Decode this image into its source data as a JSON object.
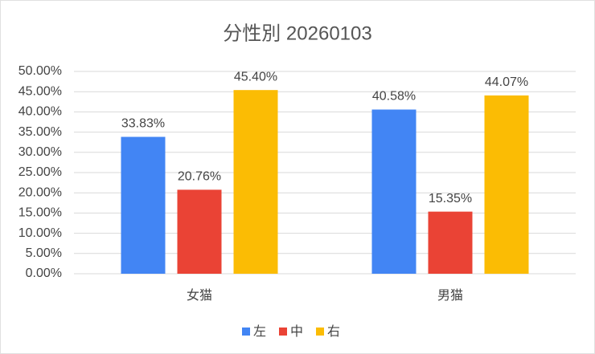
{
  "chart_data": {
    "type": "bar",
    "title": "分性別 20260103",
    "categories": [
      "女猫",
      "男猫"
    ],
    "series": [
      {
        "name": "左",
        "color": "#4285f4",
        "values": [
          33.83,
          40.58
        ],
        "value_labels": [
          "33.83%",
          "40.58%"
        ]
      },
      {
        "name": "中",
        "color": "#ea4335",
        "values": [
          20.76,
          15.35
        ],
        "value_labels": [
          "20.76%",
          "15.35%"
        ]
      },
      {
        "name": "右",
        "color": "#fbbc04",
        "values": [
          45.4,
          44.07
        ],
        "value_labels": [
          "45.40%",
          "44.07%"
        ]
      }
    ],
    "ylim": [
      0,
      50
    ],
    "yticks": [
      {
        "value": 0,
        "label": "0.00%"
      },
      {
        "value": 5,
        "label": "5.00%"
      },
      {
        "value": 10,
        "label": "10.00%"
      },
      {
        "value": 15,
        "label": "15.00%"
      },
      {
        "value": 20,
        "label": "20.00%"
      },
      {
        "value": 25,
        "label": "25.00%"
      },
      {
        "value": 30,
        "label": "30.00%"
      },
      {
        "value": 35,
        "label": "35.00%"
      },
      {
        "value": 40,
        "label": "40.00%"
      },
      {
        "value": 45,
        "label": "45.00%"
      },
      {
        "value": 50,
        "label": "50.00%"
      }
    ],
    "grid": true,
    "legend": "bottom"
  }
}
